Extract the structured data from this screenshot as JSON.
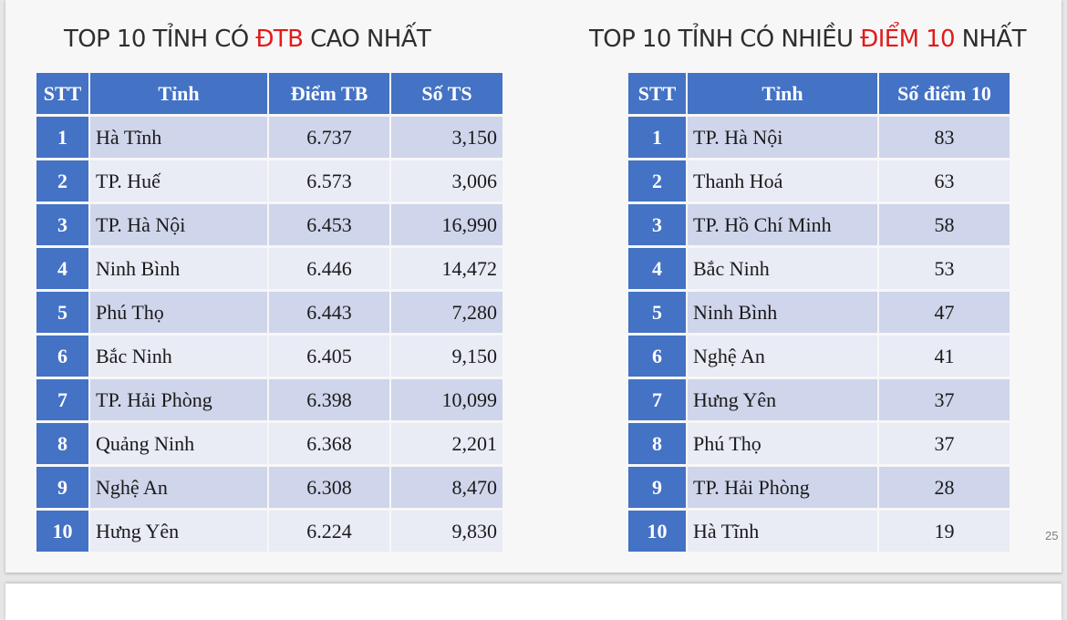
{
  "left": {
    "title_before": "TOP 10 TỈNH CÓ ",
    "title_highlight": "ĐTB",
    "title_after": " CAO NHẤT",
    "headers": [
      "STT",
      "Tỉnh",
      "Điểm TB",
      "Số TS"
    ],
    "rows": [
      [
        "1",
        "Hà Tĩnh",
        "6.737",
        "3,150"
      ],
      [
        "2",
        "TP. Huế",
        "6.573",
        "3,006"
      ],
      [
        "3",
        "TP. Hà Nội",
        "6.453",
        "16,990"
      ],
      [
        "4",
        "Ninh Bình",
        "6.446",
        "14,472"
      ],
      [
        "5",
        "Phú Thọ",
        "6.443",
        "7,280"
      ],
      [
        "6",
        "Bắc Ninh",
        "6.405",
        "9,150"
      ],
      [
        "7",
        "TP. Hải Phòng",
        "6.398",
        "10,099"
      ],
      [
        "8",
        "Quảng Ninh",
        "6.368",
        "2,201"
      ],
      [
        "9",
        "Nghệ An",
        "6.308",
        "8,470"
      ],
      [
        "10",
        "Hưng Yên",
        "6.224",
        "9,830"
      ]
    ]
  },
  "right": {
    "title_before": "TOP 10 TỈNH CÓ NHIỀU ",
    "title_highlight": "ĐIỂM 10",
    "title_after": " NHẤT",
    "headers": [
      "STT",
      "Tỉnh",
      "Số điểm 10"
    ],
    "rows": [
      [
        "1",
        "TP. Hà Nội",
        "83"
      ],
      [
        "2",
        "Thanh Hoá",
        "63"
      ],
      [
        "3",
        "TP. Hồ Chí Minh",
        "58"
      ],
      [
        "4",
        "Bắc Ninh",
        "53"
      ],
      [
        "5",
        "Ninh Bình",
        "47"
      ],
      [
        "6",
        "Nghệ An",
        "41"
      ],
      [
        "7",
        "Hưng Yên",
        "37"
      ],
      [
        "8",
        "Phú Thọ",
        "37"
      ],
      [
        "9",
        "TP. Hải Phòng",
        "28"
      ],
      [
        "10",
        "Hà Tĩnh",
        "19"
      ]
    ]
  },
  "page_number": "25",
  "colors": {
    "header_blue": "#4472c4",
    "row_dark": "#cfd5ea",
    "row_light": "#e9ebf5",
    "highlight_red": "#e21a1a"
  }
}
